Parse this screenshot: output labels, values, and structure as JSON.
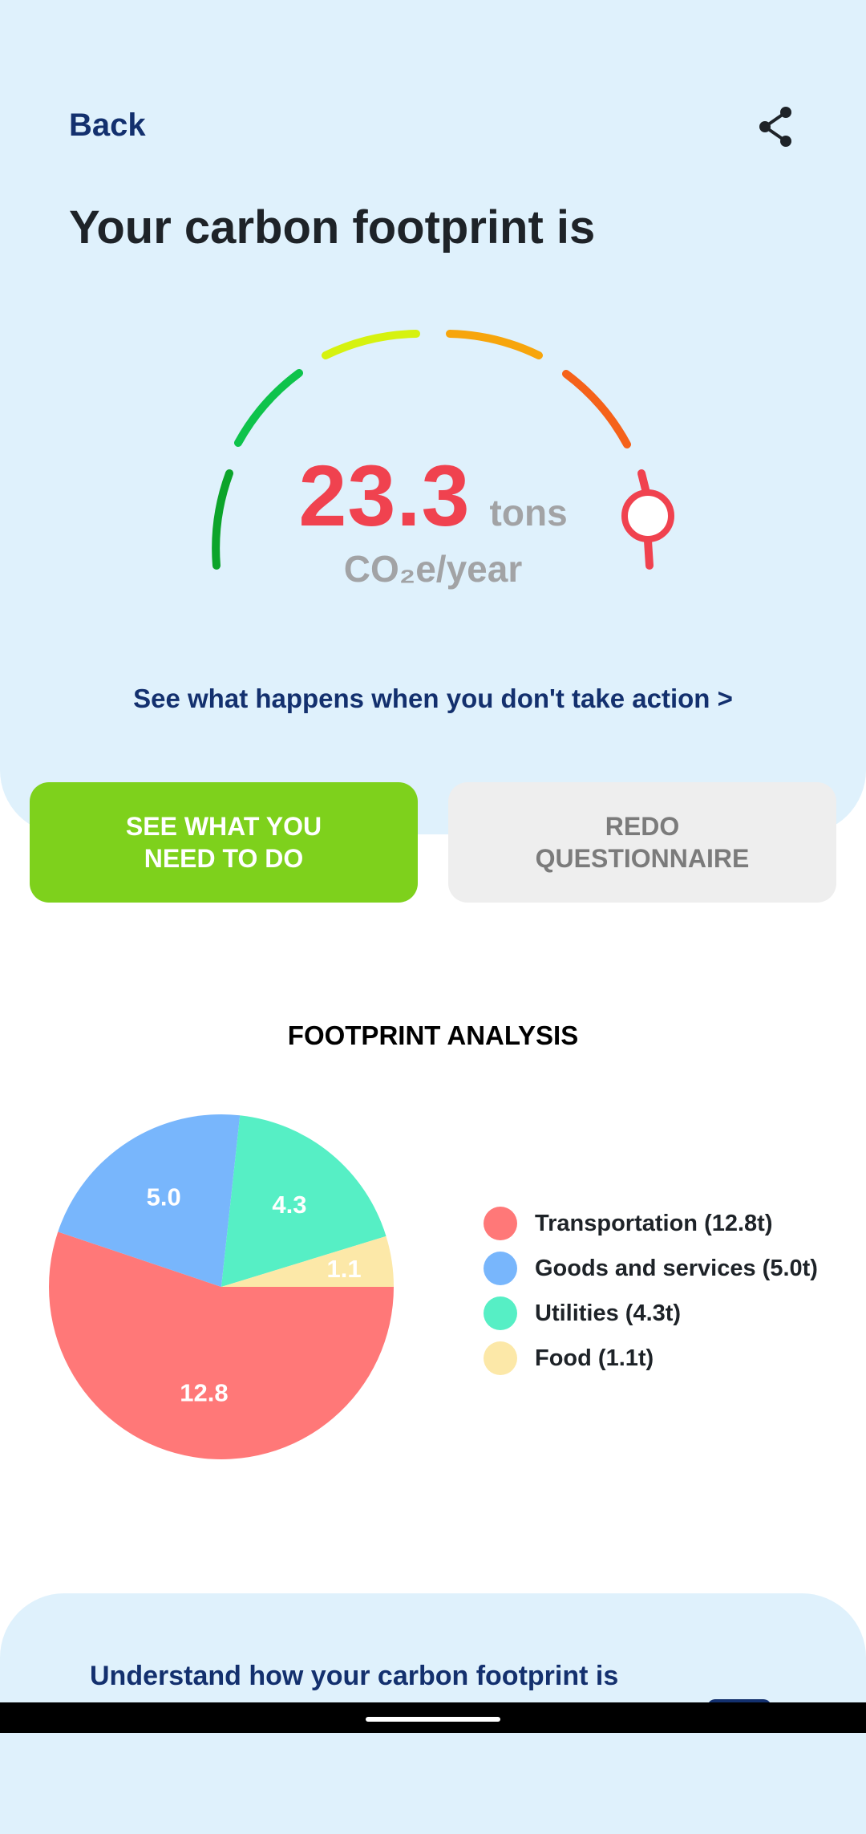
{
  "header": {
    "back_label": "Back",
    "share_icon": "share-icon"
  },
  "title": "Your carbon footprint is",
  "footprint": {
    "value": "23.3",
    "unit": "tons",
    "sub_unit": "CO₂e/year",
    "gauge_level": 1.0
  },
  "action_link": "See what happens when you don't take action >",
  "buttons": {
    "primary": "SEE WHAT YOU\nNEED TO DO",
    "secondary": "REDO\nQUESTIONNAIRE"
  },
  "analysis": {
    "title": "FOOTPRINT ANALYSIS"
  },
  "chart_data": {
    "type": "pie",
    "title": "FOOTPRINT ANALYSIS",
    "slices": [
      {
        "label": "Transportation",
        "value": 12.8,
        "display": "12.8",
        "legend": "Transportation (12.8t)",
        "color": "#ff7878"
      },
      {
        "label": "Goods and services",
        "value": 5.0,
        "display": "5.0",
        "legend": "Goods and services (5.0t)",
        "color": "#78b6fc"
      },
      {
        "label": "Utilities",
        "value": 4.3,
        "display": "4.3",
        "legend": "Utilities (4.3t)",
        "color": "#56efc5"
      },
      {
        "label": "Food",
        "value": 1.1,
        "display": "1.1",
        "legend": "Food (1.1t)",
        "color": "#fce8a8"
      }
    ],
    "legend_position": "right"
  },
  "colors": {
    "panel_bg": "#dff1fc",
    "navy": "#13306e",
    "value_red": "#f0424f",
    "primary_green": "#7ed11c",
    "secondary_gray": "#eeeeee"
  },
  "bottom": {
    "text": "Understand how your carbon footprint is"
  }
}
